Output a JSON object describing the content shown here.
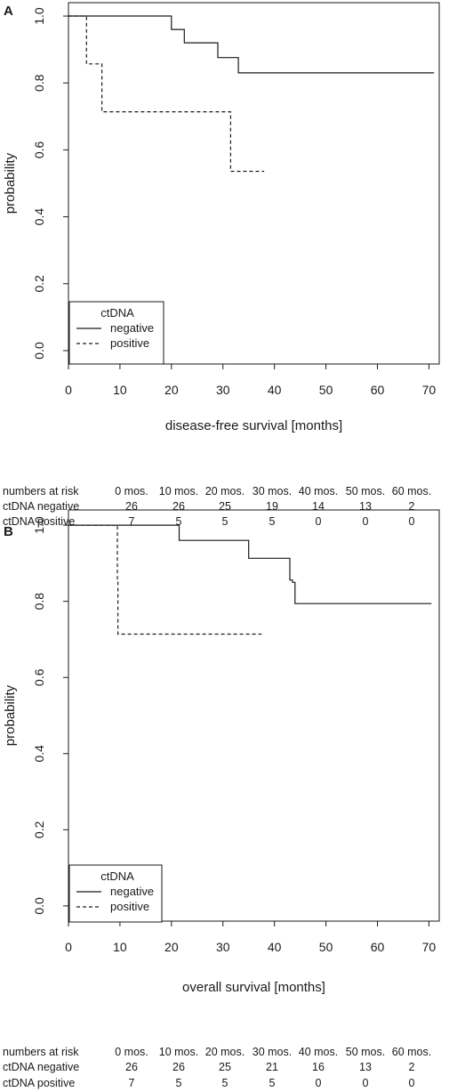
{
  "chart_data": [
    {
      "type": "line",
      "panel": "A",
      "xlabel": "disease-free survival [months]",
      "ylabel": "probability",
      "xlim": [
        0,
        72
      ],
      "ylim": [
        -0.04,
        1.04
      ],
      "xticks": [
        "0",
        "10",
        "20",
        "30",
        "40",
        "50",
        "60",
        "70"
      ],
      "yticks": [
        "0.0",
        "0.2",
        "0.4",
        "0.6",
        "0.8",
        "1.0"
      ],
      "legend": {
        "title": "ctDNA",
        "position": "bottom-left",
        "entries": [
          "negative",
          "positive"
        ]
      },
      "series": [
        {
          "name": "negative",
          "style": "solid",
          "x": [
            0,
            20,
            20,
            22.5,
            22.5,
            29,
            29,
            33,
            33,
            71
          ],
          "y": [
            1.0,
            1.0,
            0.96,
            0.96,
            0.92,
            0.92,
            0.876,
            0.876,
            0.83,
            0.83
          ]
        },
        {
          "name": "positive",
          "style": "dashed",
          "x": [
            0,
            3.5,
            3.5,
            6.5,
            6.5,
            31.5,
            31.5,
            38
          ],
          "y": [
            1.0,
            1.0,
            0.857,
            0.857,
            0.714,
            0.714,
            0.536,
            0.536
          ]
        }
      ],
      "risk_table": {
        "header": [
          "numbers at risk",
          "0 mos.",
          "10 mos.",
          "20 mos.",
          "30 mos.",
          "40 mos.",
          "50 mos.",
          "60 mos."
        ],
        "rows": [
          [
            "ctDNA negative",
            "26",
            "26",
            "25",
            "19",
            "14",
            "13",
            "2"
          ],
          [
            "ctDNA positive",
            "7",
            "5",
            "5",
            "5",
            "0",
            "0",
            "0"
          ]
        ]
      }
    },
    {
      "type": "line",
      "panel": "B",
      "xlabel": "overall survival [months]",
      "ylabel": "probability",
      "xlim": [
        0,
        72
      ],
      "ylim": [
        -0.04,
        1.04
      ],
      "xticks": [
        "0",
        "10",
        "20",
        "30",
        "40",
        "50",
        "60",
        "70"
      ],
      "yticks": [
        "0.0",
        "0.2",
        "0.4",
        "0.6",
        "0.8",
        "1.0"
      ],
      "legend": {
        "title": "ctDNA",
        "position": "bottom-left",
        "entries": [
          "negative",
          "positive"
        ]
      },
      "series": [
        {
          "name": "negative",
          "style": "solid",
          "x": [
            0,
            21.5,
            21.5,
            35,
            35,
            43,
            43,
            43.5,
            43.5,
            44,
            44,
            70.5
          ],
          "y": [
            1.0,
            1.0,
            0.96,
            0.96,
            0.913,
            0.913,
            0.856,
            0.856,
            0.85,
            0.85,
            0.794,
            0.794
          ]
        },
        {
          "name": "positive",
          "style": "dashed",
          "x": [
            0,
            9.5,
            9.5,
            9.6,
            9.6,
            37.5
          ],
          "y": [
            1.0,
            1.0,
            0.857,
            0.857,
            0.714,
            0.714
          ]
        }
      ],
      "risk_table": {
        "header": [
          "numbers at risk",
          "0 mos.",
          "10 mos.",
          "20 mos.",
          "30 mos.",
          "40 mos.",
          "50 mos.",
          "60 mos."
        ],
        "rows": [
          [
            "ctDNA negative",
            "26",
            "26",
            "25",
            "21",
            "16",
            "13",
            "2"
          ],
          [
            "ctDNA positive",
            "7",
            "5",
            "5",
            "5",
            "0",
            "0",
            "0"
          ]
        ]
      }
    }
  ]
}
